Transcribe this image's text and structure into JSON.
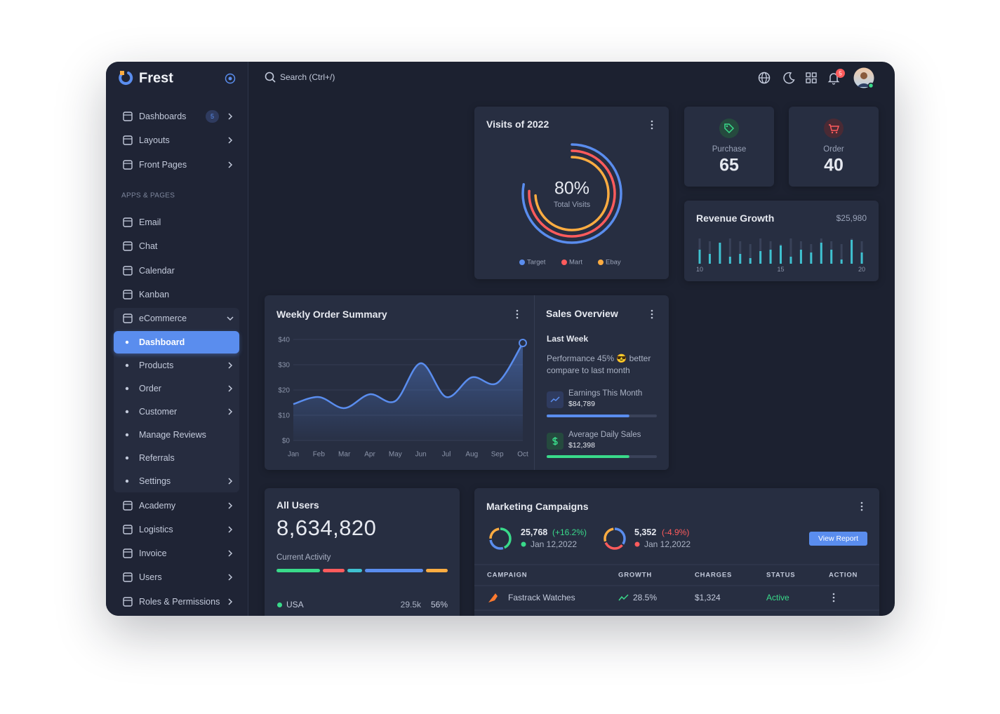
{
  "sidebar": {
    "brand": "Frest",
    "menu": [
      {
        "label": "Dashboards",
        "badge": 5,
        "submenu": true
      },
      {
        "label": "Layouts",
        "submenu": true
      },
      {
        "label": "Front Pages",
        "submenu": true
      }
    ],
    "section": "APPS & PAGES",
    "apps": [
      {
        "label": "Email"
      },
      {
        "label": "Chat"
      },
      {
        "label": "Calendar"
      },
      {
        "label": "Kanban"
      },
      {
        "label": "eCommerce",
        "open": true,
        "children": [
          {
            "label": "Dashboard",
            "active": true
          },
          {
            "label": "Products",
            "submenu": true
          },
          {
            "label": "Order",
            "submenu": true
          },
          {
            "label": "Customer",
            "submenu": true
          },
          {
            "label": "Manage Reviews"
          },
          {
            "label": "Referrals"
          },
          {
            "label": "Settings",
            "submenu": true
          }
        ]
      },
      {
        "label": "Academy",
        "submenu": true
      },
      {
        "label": "Logistics",
        "submenu": true
      },
      {
        "label": "Invoice",
        "submenu": true
      },
      {
        "label": "Users",
        "submenu": true
      },
      {
        "label": "Roles & Permissions",
        "submenu": true
      }
    ]
  },
  "topbar": {
    "search": "Search (Ctrl+/)",
    "notifications": 5
  },
  "visits": {
    "title": "Visits of 2022",
    "value": "80%",
    "caption": "Total Visits",
    "legend": [
      "Target",
      "Mart",
      "Ebay"
    ]
  },
  "purchase": {
    "label": "Purchase",
    "value": 65
  },
  "order": {
    "label": "Order",
    "value": 40
  },
  "revenue_growth": {
    "type": "bar",
    "title": "Revenue Growth",
    "total": "$25,980",
    "categories": [
      "10",
      null,
      null,
      null,
      null,
      null,
      null,
      null,
      "15",
      null,
      null,
      null,
      null,
      null,
      null,
      null,
      "20"
    ],
    "values": [
      20,
      14,
      30,
      10,
      14,
      8,
      18,
      20,
      26,
      10,
      20,
      16,
      30,
      20,
      6,
      34,
      16
    ],
    "ylim": [
      0,
      40
    ],
    "color": "#3fc1d0"
  },
  "weekly_order_summary": {
    "type": "line",
    "title": "Weekly Order Summary",
    "categories": [
      "Jan",
      "Feb",
      "Mar",
      "Apr",
      "May",
      "Jun",
      "Jul",
      "Aug",
      "Sep",
      "Oct"
    ],
    "values": [
      14.4,
      17.2,
      12.8,
      18.3,
      15.6,
      30.6,
      17.2,
      25,
      22.8,
      38.6
    ],
    "ylim": [
      0,
      40
    ],
    "yticks": [
      {
        "value": 0,
        "label": "$0"
      },
      {
        "value": 10,
        "label": "$10"
      },
      {
        "value": 20,
        "label": "$20"
      },
      {
        "value": 30,
        "label": "$30"
      },
      {
        "value": 40,
        "label": "$40"
      }
    ],
    "color": "#5a8dee",
    "grid": true
  },
  "sales_overview": {
    "title": "Sales Overview",
    "period": "Last Week",
    "performance": "Performance 45% 😎 better compare to last month",
    "earnings": {
      "label": "Earnings This Month",
      "value": "$84,789",
      "progress": 75
    },
    "daily_sales": {
      "label": "Average Daily Sales",
      "value": "$12,398",
      "progress": 75
    }
  },
  "all_users": {
    "title": "All Users",
    "total": "8,634,820",
    "activity_label": "Current Activity",
    "rows": [
      {
        "country": "USA",
        "count": "29.5k",
        "share": "56%"
      }
    ]
  },
  "marketing_campaigns": {
    "title": "Marketing Campaigns",
    "stats": [
      {
        "value": "25,768",
        "change": "(+16.2%)",
        "date": "Jan 12,2022"
      },
      {
        "value": "5,352",
        "change": "(-4.9%)",
        "date": "Jan 12,2022"
      }
    ],
    "button": "View Report",
    "table": {
      "columns": [
        "CAMPAIGN",
        "GROWTH",
        "CHARGES",
        "STATUS",
        "ACTION"
      ],
      "rows": [
        [
          "Fastrack Watches",
          "28.5%",
          "$1,324",
          "Active"
        ]
      ]
    }
  }
}
